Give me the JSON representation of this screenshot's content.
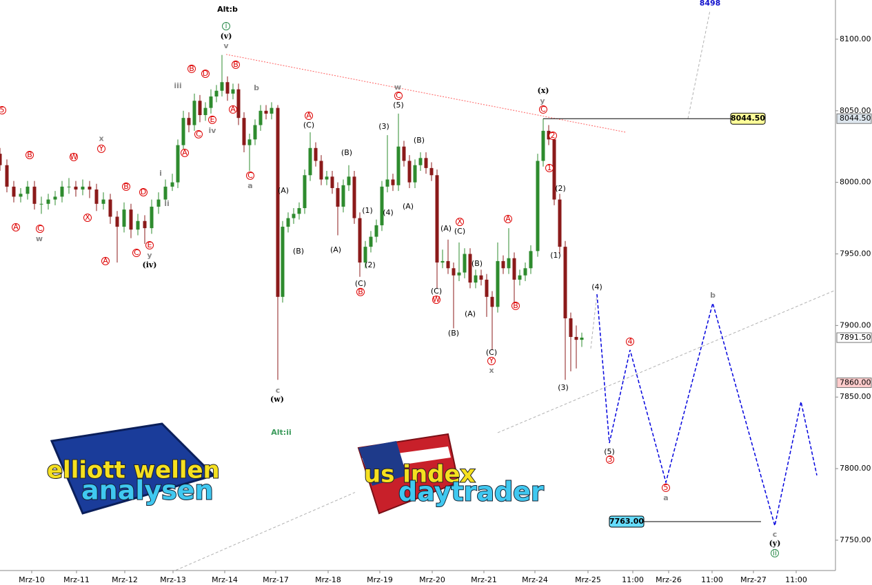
{
  "chart_data": {
    "type": "candlestick",
    "xlim": [
      0,
      606
    ],
    "ylim": [
      7728.8,
      8127.4
    ],
    "xticks": [
      {
        "value": 23,
        "label": "Mrz-10"
      },
      {
        "value": 55.5,
        "label": "Mrz-11"
      },
      {
        "value": 90.5,
        "label": "Mrz-12"
      },
      {
        "value": 125.5,
        "label": "Mrz-13"
      },
      {
        "value": 163,
        "label": "Mrz-14"
      },
      {
        "value": 200,
        "label": "Mrz-17"
      },
      {
        "value": 238,
        "label": "Mrz-18"
      },
      {
        "value": 275.5,
        "label": "Mrz-19"
      },
      {
        "value": 313.5,
        "label": "Mrz-20"
      },
      {
        "value": 351,
        "label": "Mrz-21"
      },
      {
        "value": 388,
        "label": "Mrz-24"
      },
      {
        "value": 426.5,
        "label": "Mrz-25"
      },
      {
        "value": 459,
        "label": "11:00"
      },
      {
        "value": 485,
        "label": "Mrz-26"
      },
      {
        "value": 516.5,
        "label": "11:00"
      },
      {
        "value": 546.5,
        "label": "Mrz-27"
      },
      {
        "value": 577.5,
        "label": "11:00"
      }
    ],
    "yticks": [
      {
        "value": 7750,
        "label": "7750.00"
      },
      {
        "value": 7800,
        "label": "7800.00"
      },
      {
        "value": 7850,
        "label": "7850.00"
      },
      {
        "value": 7900,
        "label": "7900.00"
      },
      {
        "value": 7950,
        "label": "7950.00"
      },
      {
        "value": 8000,
        "label": "8000.00"
      },
      {
        "value": 8050,
        "label": "8050.00"
      },
      {
        "value": 8100,
        "label": "8100.00"
      }
    ],
    "up_color": "#2e8b2e",
    "down_color": "#8b1a1a",
    "x": [
      0,
      5,
      10,
      15,
      20,
      25,
      30,
      35,
      40,
      45,
      50,
      55,
      60,
      65,
      70,
      75,
      80,
      85,
      90,
      95,
      100,
      105,
      110,
      115,
      120,
      125,
      129,
      133,
      137,
      141,
      145,
      149,
      153,
      157,
      161,
      165,
      169,
      173,
      177,
      181,
      185,
      189,
      193,
      197,
      201.5,
      205,
      209,
      213,
      217,
      221,
      225,
      229,
      233,
      237,
      241,
      245,
      249,
      253,
      257,
      261,
      265,
      269,
      273,
      277,
      281,
      285,
      289,
      293,
      297,
      301,
      305,
      309,
      313,
      317,
      321,
      325,
      329,
      333,
      337,
      341,
      345,
      349,
      353,
      357,
      361,
      365,
      369,
      373,
      377,
      381,
      385,
      390,
      394,
      398,
      402,
      406,
      410,
      414,
      418,
      422
    ],
    "open": [
      8020,
      8012,
      7997,
      7990,
      7992,
      7997,
      7985,
      7985,
      7988,
      7990,
      7997,
      7997,
      7995,
      7997,
      7995,
      7985,
      7988,
      7976,
      7969,
      7981,
      7967,
      7973,
      7968,
      7983,
      7988,
      7997,
      8000,
      8026,
      8045,
      8040,
      8057,
      8047,
      8052,
      8060,
      8064,
      8070,
      8062,
      8065,
      8045,
      8026,
      8030,
      8040,
      8050,
      8048,
      8052,
      7920,
      7969,
      7975,
      7978,
      7982,
      8005,
      8024,
      8015,
      8002,
      8004,
      7996,
      7983,
      7998,
      8004,
      7975,
      7944,
      7955,
      7962,
      7970,
      7997,
      8002,
      7998,
      8025,
      8015,
      8000,
      8012,
      8017,
      8010,
      8005,
      7944,
      7945,
      7940,
      7935,
      7937,
      7950,
      7930,
      7935,
      7932,
      7920,
      7913,
      7945,
      7940,
      7947,
      7932,
      7935,
      7940,
      7952,
      8015,
      8036,
      8030,
      7988,
      7955,
      7905,
      7892,
      7890
    ],
    "high": [
      8024,
      8016,
      8001,
      7996,
      8001,
      8001,
      7990,
      7992,
      7994,
      8001,
      8003,
      8001,
      8002,
      8001,
      7999,
      7993,
      7992,
      7980,
      7986,
      7985,
      7978,
      7977,
      7988,
      7993,
      8002,
      8006,
      8030,
      8050,
      8049,
      8062,
      8061,
      8056,
      8065,
      8068,
      8089,
      8074,
      8069,
      8069,
      8049,
      8034,
      8044,
      8054,
      8054,
      8056,
      8054,
      7973,
      7979,
      7982,
      7986,
      8009,
      8035,
      8028,
      8019,
      8008,
      8008,
      8000,
      8002,
      8012,
      8008,
      7979,
      7959,
      7966,
      7974,
      8001,
      8033,
      8006,
      8048,
      8029,
      8019,
      8016,
      8021,
      8021,
      8014,
      8009,
      7953,
      7960,
      7944,
      7958,
      7954,
      7954,
      7939,
      7939,
      7936,
      7924,
      7958,
      7949,
      7968,
      7951,
      7939,
      7944,
      7956,
      8020,
      8044.5,
      8040,
      8034,
      7992,
      7959,
      7909,
      7900,
      7895
    ],
    "low": [
      8008,
      7993,
      7986,
      7986,
      7988,
      7981,
      7978,
      7981,
      7984,
      7986,
      7992,
      7990,
      7991,
      7989,
      7980,
      7981,
      7971,
      7944,
      7965,
      7961,
      7963,
      7957,
      7964,
      7978,
      7984,
      7994,
      7996,
      8022,
      8035,
      8036,
      8042,
      8043,
      8048,
      8056,
      8060,
      8057,
      8058,
      8040,
      8021,
      8008,
      8026,
      8036,
      8044,
      8044,
      7862,
      7916,
      7965,
      7971,
      7974,
      7978,
      8001,
      8011,
      7998,
      7998,
      7992,
      7963,
      7979,
      7994,
      7971,
      7934,
      7940,
      7951,
      7958,
      7966,
      7993,
      7994,
      7994,
      8011,
      7996,
      7996,
      8008,
      8006,
      8001,
      7926,
      7940,
      7936,
      7898,
      7931,
      7933,
      7926,
      7926,
      7928,
      7906,
      7883,
      7909,
      7936,
      7936,
      7915,
      7928,
      7931,
      7936,
      7948,
      8011,
      8026,
      7984,
      7950,
      7862,
      7868,
      7870,
      7885
    ],
    "close": [
      8012,
      7997,
      7990,
      7992,
      7997,
      7985,
      7985,
      7988,
      7990,
      7997,
      7997,
      7995,
      7997,
      7995,
      7985,
      7988,
      7976,
      7969,
      7981,
      7967,
      7973,
      7968,
      7983,
      7988,
      7997,
      8000,
      8026,
      8045,
      8040,
      8057,
      8047,
      8052,
      8060,
      8064,
      8070,
      8062,
      8065,
      8045,
      8026,
      8030,
      8040,
      8050,
      8048,
      8052,
      7920,
      7969,
      7975,
      7978,
      7982,
      8005,
      8024,
      8015,
      8002,
      8004,
      7996,
      7983,
      7998,
      8004,
      7975,
      7944,
      7955,
      7962,
      7970,
      7997,
      8002,
      7998,
      8025,
      8015,
      8000,
      8012,
      8017,
      8010,
      8005,
      7944,
      7945,
      7940,
      7935,
      7937,
      7950,
      7930,
      7935,
      7932,
      7920,
      7913,
      7945,
      7940,
      7947,
      7932,
      7935,
      7940,
      7952,
      8015,
      8036,
      8030,
      7988,
      7955,
      7905,
      7892,
      7890,
      7891.5
    ],
    "projection": {
      "color": "#0000dd",
      "x": [
        433,
        442,
        457,
        483,
        517,
        562,
        581,
        592.5
      ],
      "values": [
        7921.9,
        7817.9,
        7882.9,
        7790.5,
        7915.6,
        7760.1,
        7846.8,
        7795.3
      ]
    },
    "trend_lines": [
      {
        "style": "red-dotted",
        "x": [
          164,
          454
        ],
        "values": [
          8089.4,
          8035
        ]
      },
      {
        "style": "gray-dashed",
        "x": [
          127.5,
          257.5
        ],
        "values": [
          7729,
          7783.4
        ]
      },
      {
        "style": "gray-dashed",
        "x": [
          361,
          605
        ],
        "values": [
          7825.1,
          7924.3
        ]
      },
      {
        "style": "gray-dashed",
        "x": [
          428.5,
          433
        ],
        "values": [
          7883.9,
          7921.9
        ]
      },
      {
        "style": "gray-dashed",
        "x": [
          499,
          515
        ],
        "values": [
          8044.5,
          8120
        ]
      }
    ],
    "levels": [
      {
        "value": 8044.5,
        "label": "8044.50",
        "x": [
          394,
          530
        ],
        "color": "#ffff99",
        "box": "right"
      },
      {
        "value": 7763,
        "label": "7763.00",
        "x": [
          467,
          552
        ],
        "color": "#66ddff",
        "box": "left"
      }
    ],
    "price_tags": [
      {
        "value": 8044.5,
        "label": "8044.50",
        "color": "#dde6ee"
      },
      {
        "value": 7891.5,
        "label": "7891.50",
        "color": "#ffffff"
      },
      {
        "value": 7860,
        "label": "7860.00",
        "color": "#ffcccc"
      }
    ],
    "annotations": [
      {
        "text": "Alt:b",
        "x": 165,
        "y": 8120.7,
        "style": "bold"
      },
      {
        "text": "8498",
        "x": 515,
        "y": 8125,
        "style": "blue-bold"
      },
      {
        "text": "Alt:ii",
        "x": 204,
        "y": 7825.1,
        "style": "green-bold"
      },
      {
        "text": "(x)",
        "x": 394,
        "y": 8063.9,
        "style": "black-bold"
      },
      {
        "text": "(w)",
        "x": 201,
        "y": 7848.2,
        "style": "black-bold"
      },
      {
        "text": "(iv)",
        "x": 108.5,
        "y": 7942.1,
        "style": "black-bold"
      },
      {
        "text": "(v)",
        "x": 164,
        "y": 8102,
        "style": "black-bold"
      },
      {
        "text": "(y)",
        "x": 562,
        "y": 7747.6,
        "style": "black-bold"
      },
      {
        "text": "(3)",
        "x": 408.5,
        "y": 7856.4,
        "style": "black"
      },
      {
        "text": "(4)",
        "x": 433,
        "y": 7926.7,
        "style": "black"
      },
      {
        "text": "(5)",
        "x": 442,
        "y": 7811.6,
        "style": "black"
      },
      {
        "text": "(1)",
        "x": 403,
        "y": 7948.8,
        "style": "black"
      },
      {
        "text": "(2)",
        "x": 406.5,
        "y": 7995.5,
        "style": "black"
      },
      {
        "text": "(A)",
        "x": 205.5,
        "y": 7994.1,
        "style": "black"
      },
      {
        "text": "(B)",
        "x": 216.5,
        "y": 7951.7,
        "style": "black"
      },
      {
        "text": "(C)",
        "x": 224,
        "y": 8039.8,
        "style": "black"
      },
      {
        "text": "(B)",
        "x": 251.5,
        "y": 8020.6,
        "style": "black"
      },
      {
        "text": "(A)",
        "x": 243.5,
        "y": 7952.6,
        "style": "black"
      },
      {
        "text": "(C)",
        "x": 261.5,
        "y": 7929.1,
        "style": "black"
      },
      {
        "text": "(1)",
        "x": 266.5,
        "y": 7980.1,
        "style": "black"
      },
      {
        "text": "(2)",
        "x": 268.5,
        "y": 7942.1,
        "style": "black"
      },
      {
        "text": "(3)",
        "x": 278.5,
        "y": 8038.9,
        "style": "black"
      },
      {
        "text": "(4)",
        "x": 281.5,
        "y": 7978.7,
        "style": "black"
      },
      {
        "text": "(5)",
        "x": 289,
        "y": 8053.8,
        "style": "black"
      },
      {
        "text": "(B)",
        "x": 304,
        "y": 8029.2,
        "style": "black"
      },
      {
        "text": "(A)",
        "x": 296,
        "y": 7983,
        "style": "black"
      },
      {
        "text": "(A)",
        "x": 323.5,
        "y": 7967.6,
        "style": "black"
      },
      {
        "text": "(C)",
        "x": 333.5,
        "y": 7965.7,
        "style": "black"
      },
      {
        "text": "(C)",
        "x": 316.5,
        "y": 7923.8,
        "style": "black"
      },
      {
        "text": "(B)",
        "x": 329,
        "y": 7894.4,
        "style": "black"
      },
      {
        "text": "(B)",
        "x": 346,
        "y": 7943.1,
        "style": "black"
      },
      {
        "text": "(A)",
        "x": 341,
        "y": 7907.9,
        "style": "black"
      },
      {
        "text": "(C)",
        "x": 356.5,
        "y": 7880.9,
        "style": "black"
      },
      {
        "text": "b",
        "x": 517,
        "y": 7920.9,
        "style": "gray"
      },
      {
        "text": "a",
        "x": 483,
        "y": 7779.4,
        "style": "gray"
      },
      {
        "text": "c",
        "x": 562,
        "y": 7753.9,
        "style": "gray"
      },
      {
        "text": "c",
        "x": 201.5,
        "y": 7854.5,
        "style": "gray"
      },
      {
        "text": "x",
        "x": 356.5,
        "y": 7868.4,
        "style": "gray"
      },
      {
        "text": "w",
        "x": 28.5,
        "y": 7960.4,
        "style": "gray"
      },
      {
        "text": "w",
        "x": 288.5,
        "y": 8066.3,
        "style": "gray"
      },
      {
        "text": "y",
        "x": 393.5,
        "y": 8056.7,
        "style": "gray"
      },
      {
        "text": "v",
        "x": 164,
        "y": 8095.2,
        "style": "gray"
      },
      {
        "text": "a",
        "x": 181.5,
        "y": 7997.5,
        "style": "gray"
      },
      {
        "text": "b",
        "x": 186,
        "y": 8065.8,
        "style": "gray"
      },
      {
        "text": "iii",
        "x": 129,
        "y": 8067.3,
        "style": "gray"
      },
      {
        "text": "iv",
        "x": 154,
        "y": 8036,
        "style": "gray"
      },
      {
        "text": "i",
        "x": 116.5,
        "y": 8006.1,
        "style": "gray"
      },
      {
        "text": "ii",
        "x": 121,
        "y": 7985,
        "style": "gray"
      },
      {
        "text": "x",
        "x": 73.5,
        "y": 8030.5,
        "style": "gray"
      },
      {
        "text": "y",
        "x": 108.5,
        "y": 7948.8,
        "style": "gray"
      },
      {
        "text": "A",
        "x": 11.5,
        "y": 7968.6,
        "style": "red-circle"
      },
      {
        "text": "C",
        "x": 29,
        "y": 7967.6,
        "style": "red-circle"
      },
      {
        "text": "B",
        "x": 21.5,
        "y": 8019.1,
        "style": "red-circle"
      },
      {
        "text": "X",
        "x": 63.5,
        "y": 7975.3,
        "style": "red-circle"
      },
      {
        "text": "W",
        "x": 53.5,
        "y": 8017.7,
        "style": "red-circle"
      },
      {
        "text": "Y",
        "x": 73.5,
        "y": 8023.5,
        "style": "red-circle"
      },
      {
        "text": "A",
        "x": 76.5,
        "y": 7945,
        "style": "red-circle"
      },
      {
        "text": "B",
        "x": 91.5,
        "y": 7997,
        "style": "red-circle"
      },
      {
        "text": "C",
        "x": 99,
        "y": 7950.7,
        "style": "red-circle"
      },
      {
        "text": "D",
        "x": 104,
        "y": 7993.1,
        "style": "red-circle"
      },
      {
        "text": "E",
        "x": 108.5,
        "y": 7956,
        "style": "red-circle"
      },
      {
        "text": "A",
        "x": 134,
        "y": 8020.6,
        "style": "red-circle"
      },
      {
        "text": "B",
        "x": 139,
        "y": 8079.3,
        "style": "red-circle"
      },
      {
        "text": "C",
        "x": 144,
        "y": 8033.6,
        "style": "red-circle"
      },
      {
        "text": "D",
        "x": 149,
        "y": 8075.9,
        "style": "red-circle"
      },
      {
        "text": "E",
        "x": 154,
        "y": 8043.7,
        "style": "red-circle"
      },
      {
        "text": "A",
        "x": 169,
        "y": 8050.9,
        "style": "red-circle"
      },
      {
        "text": "B",
        "x": 171,
        "y": 8082.2,
        "style": "red-circle"
      },
      {
        "text": "C",
        "x": 181.5,
        "y": 8004.7,
        "style": "red-circle"
      },
      {
        "text": "A",
        "x": 224,
        "y": 8046.5,
        "style": "red-circle"
      },
      {
        "text": "C",
        "x": 289,
        "y": 8060.5,
        "style": "red-circle"
      },
      {
        "text": "B",
        "x": 261.5,
        "y": 7923.4,
        "style": "red-circle"
      },
      {
        "text": "W",
        "x": 316.5,
        "y": 7918,
        "style": "red-circle"
      },
      {
        "text": "X",
        "x": 333.5,
        "y": 7972.4,
        "style": "red-circle"
      },
      {
        "text": "A",
        "x": 368.5,
        "y": 7974.4,
        "style": "red-circle"
      },
      {
        "text": "B",
        "x": 374,
        "y": 7913.7,
        "style": "red-circle"
      },
      {
        "text": "Y",
        "x": 356.5,
        "y": 7875.2,
        "style": "red-circle"
      },
      {
        "text": "C",
        "x": 394,
        "y": 8050.9,
        "style": "red-circle"
      },
      {
        "text": "2",
        "x": 401,
        "y": 8032.6,
        "style": "red-circle"
      },
      {
        "text": "1",
        "x": 398.5,
        "y": 8010,
        "style": "red-circle"
      },
      {
        "text": "4",
        "x": 457,
        "y": 7888.7,
        "style": "red-circle"
      },
      {
        "text": "3",
        "x": 442.5,
        "y": 7806.3,
        "style": "red-circle"
      },
      {
        "text": "5",
        "x": 483,
        "y": 7786.6,
        "style": "red-circle"
      },
      {
        "text": "5",
        "x": 1.5,
        "y": 8050.4,
        "style": "red-circle"
      },
      {
        "text": "i",
        "x": 164,
        "y": 8109.1,
        "style": "green-circle"
      },
      {
        "text": "ii",
        "x": 562,
        "y": 7740.9,
        "style": "green-circle"
      }
    ]
  },
  "logos": {
    "left_top": "elliott wellen",
    "left_bottom": "analysen",
    "right_top": "us index",
    "right_bottom": "daytrader"
  }
}
